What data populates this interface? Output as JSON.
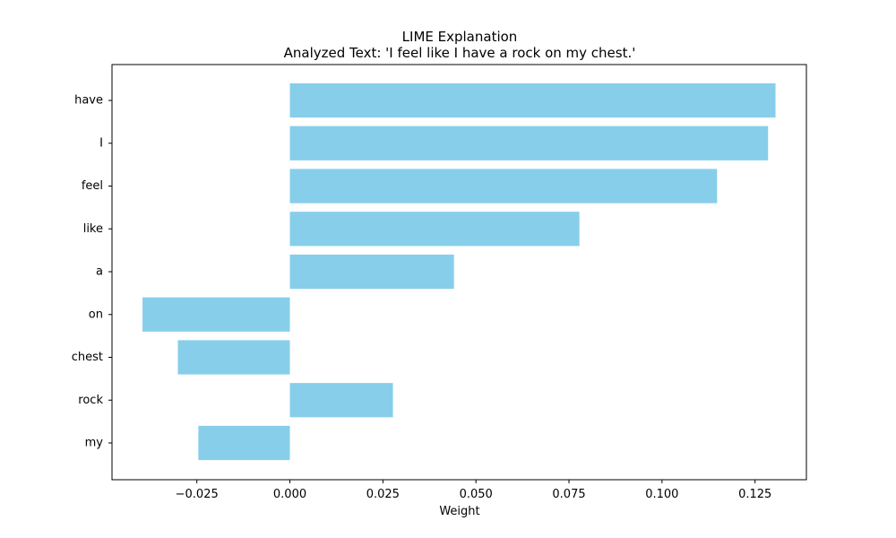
{
  "chart_data": {
    "type": "bar",
    "orientation": "horizontal",
    "title": "LIME Explanation",
    "subtitle": "Analyzed Text: 'I feel like I have a rock on my chest.'",
    "xlabel": "Weight",
    "ylabel": "",
    "categories": [
      "have",
      "I",
      "feel",
      "like",
      "a",
      "on",
      "chest",
      "rock",
      "my"
    ],
    "values": [
      0.1305,
      0.1285,
      0.1148,
      0.0778,
      0.0441,
      -0.0396,
      -0.0301,
      0.0277,
      -0.0246
    ],
    "xlim": [
      -0.0478,
      0.1388
    ],
    "x_ticks": [
      -0.025,
      0.0,
      0.025,
      0.05,
      0.075,
      0.1,
      0.125
    ],
    "x_tick_labels": [
      "−0.025",
      "0.000",
      "0.025",
      "0.050",
      "0.075",
      "0.100",
      "0.125"
    ],
    "bar_color": "#87ceeb",
    "grid": false,
    "legend": "none"
  }
}
